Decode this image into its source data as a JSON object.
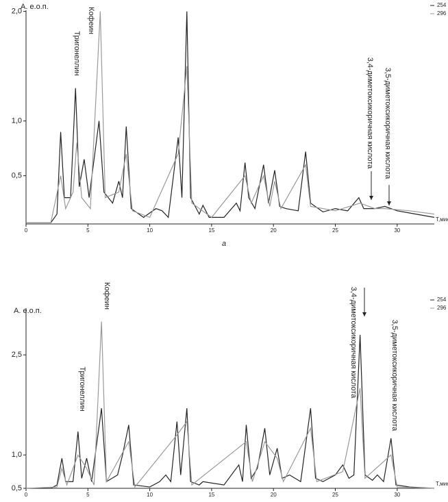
{
  "chart_data": [
    {
      "type": "line",
      "ylabel": "А. е.о.п.",
      "xlabel": "Т,мин",
      "caption": "а",
      "annotations": [
        "Тригонеллин",
        "Кофеин",
        "3,4-диметоксикоричная кислота",
        "3,5-диметоксикоричная кислота"
      ],
      "xlim": [
        0,
        33
      ],
      "xticks": [
        0,
        5,
        10,
        15,
        20,
        25,
        30
      ],
      "ylim": [
        0.06,
        2.01
      ],
      "yticks": [
        {
          "value": 0.5,
          "label": "0,5"
        },
        {
          "value": 1.0,
          "label": "1,0"
        },
        {
          "value": 2.0,
          "label": "2,0"
        }
      ],
      "series": [
        {
          "name": "254",
          "color": "#222222",
          "x": [
            0,
            2,
            2.5,
            2.8,
            3.1,
            3.6,
            4.0,
            4.3,
            4.7,
            5.1,
            5.9,
            6.3,
            7,
            7.5,
            7.8,
            8.1,
            8.5,
            9.5,
            10.5,
            11,
            11.5,
            12.3,
            12.6,
            13,
            13.3,
            14,
            14.3,
            14.8,
            16,
            17,
            17.3,
            17.7,
            18,
            18.5,
            19.2,
            19.6,
            20.1,
            20.5,
            21,
            22,
            22.6,
            23,
            24,
            25,
            26,
            26.9,
            27.3,
            28.2,
            29,
            30,
            31,
            33
          ],
          "values": [
            0.07,
            0.07,
            0.15,
            0.9,
            0.3,
            0.3,
            1.3,
            0.4,
            0.65,
            0.3,
            1.0,
            0.35,
            0.25,
            0.45,
            0.3,
            0.95,
            0.2,
            0.12,
            0.2,
            0.18,
            0.12,
            0.85,
            0.3,
            2.0,
            0.3,
            0.15,
            0.23,
            0.12,
            0.12,
            0.25,
            0.18,
            0.62,
            0.3,
            0.2,
            0.6,
            0.25,
            0.55,
            0.22,
            0.2,
            0.18,
            0.72,
            0.25,
            0.17,
            0.2,
            0.18,
            0.3,
            0.2,
            0.2,
            0.22,
            0.18,
            0.16,
            0.12
          ]
        },
        {
          "name": "296",
          "color": "#999999",
          "x": [
            0,
            2,
            2.8,
            3.2,
            3.8,
            4.1,
            4.5,
            5.2,
            6.0,
            6.4,
            7.5,
            8.1,
            8.6,
            10,
            12.3,
            13,
            13.4,
            15,
            17.7,
            18.2,
            19.2,
            19.7,
            20.1,
            20.6,
            22.6,
            23,
            25,
            27,
            28.2,
            29,
            31,
            33
          ],
          "values": [
            0.07,
            0.07,
            0.5,
            0.2,
            0.35,
            0.8,
            0.3,
            0.2,
            2.0,
            0.3,
            0.35,
            0.7,
            0.18,
            0.12,
            0.7,
            1.5,
            0.25,
            0.12,
            0.5,
            0.25,
            0.5,
            0.22,
            0.45,
            0.2,
            0.6,
            0.22,
            0.18,
            0.25,
            0.2,
            0.2,
            0.18,
            0.15
          ]
        }
      ]
    },
    {
      "type": "line",
      "ylabel": "А. е.о.п.",
      "xlabel": "Т,мин",
      "annotations": [
        "Тригонеллин",
        "Кофеин",
        "3,4-диметоксикоричная кислота",
        "3,5-диметоксикоричная кислота"
      ],
      "xlim": [
        0,
        33
      ],
      "xticks": [
        0,
        5,
        10,
        15,
        20,
        25,
        30
      ],
      "ylim": [
        0.5,
        3.2
      ],
      "yticks": [
        {
          "value": 0.5,
          "label": "0,5"
        },
        {
          "value": 1.0,
          "label": "1,0"
        },
        {
          "value": 2.5,
          "label": "2,5"
        }
      ],
      "series": [
        {
          "name": "254",
          "color": "#222222",
          "x": [
            0,
            2,
            2.5,
            2.9,
            3.2,
            3.8,
            4.2,
            4.5,
            4.9,
            5.3,
            6.1,
            6.5,
            7.4,
            7.8,
            8.3,
            8.7,
            10,
            10.8,
            11.3,
            11.7,
            12.2,
            12.5,
            13,
            13.3,
            14,
            14.3,
            16,
            17.2,
            17.5,
            17.8,
            18.2,
            18.7,
            19.3,
            19.7,
            20.3,
            20.7,
            21.3,
            22.2,
            23,
            23.4,
            24,
            25,
            25.6,
            26.1,
            26.5,
            27,
            27.4,
            28,
            28.4,
            28.9,
            29.5,
            29.9,
            31,
            33
          ],
          "values": [
            0.5,
            0.5,
            0.55,
            0.95,
            0.6,
            0.6,
            1.35,
            0.65,
            0.95,
            0.6,
            1.7,
            0.6,
            0.7,
            1.0,
            1.45,
            0.55,
            0.52,
            0.6,
            0.7,
            0.6,
            1.5,
            0.7,
            1.7,
            0.6,
            0.55,
            0.6,
            0.55,
            0.85,
            0.6,
            1.45,
            0.65,
            0.8,
            1.4,
            0.7,
            1.1,
            0.65,
            0.7,
            0.6,
            1.7,
            0.65,
            0.6,
            0.7,
            0.85,
            0.65,
            0.7,
            2.8,
            0.7,
            0.62,
            0.7,
            0.6,
            1.25,
            0.55,
            0.52,
            0.5
          ]
        },
        {
          "name": "296",
          "color": "#999999",
          "x": [
            0,
            2.5,
            2.9,
            3.3,
            4.2,
            4.9,
            5.5,
            6.1,
            6.5,
            8.3,
            8.8,
            12.2,
            13,
            13.4,
            17.8,
            18.3,
            19.3,
            20.3,
            20.8,
            23,
            23.5,
            25.6,
            27,
            27.4,
            29.5,
            30,
            33
          ],
          "values": [
            0.5,
            0.52,
            0.8,
            0.55,
            1.0,
            0.8,
            0.55,
            3.0,
            0.6,
            1.2,
            0.52,
            1.3,
            1.5,
            0.55,
            1.2,
            0.6,
            1.2,
            0.95,
            0.6,
            1.4,
            0.6,
            0.75,
            2.0,
            0.65,
            1.0,
            0.52,
            0.5
          ]
        }
      ]
    }
  ]
}
